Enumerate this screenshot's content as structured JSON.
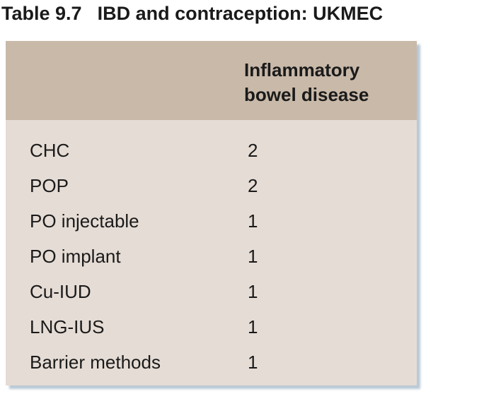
{
  "title": {
    "label": "Table 9.7",
    "text": "IBD and contraception: UKMEC"
  },
  "table": {
    "header": "Inflammatory bowel disease",
    "rows": [
      [
        "CHC",
        2
      ],
      [
        "POP",
        2
      ],
      [
        "PO injectable",
        1
      ],
      [
        "PO implant",
        1
      ],
      [
        "Cu-IUD",
        1
      ],
      [
        "LNG-IUS",
        1
      ],
      [
        "Barrier methods",
        1
      ]
    ]
  }
}
